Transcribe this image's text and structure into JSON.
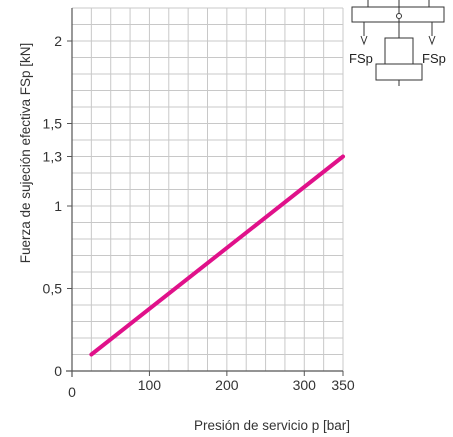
{
  "chart_data": {
    "type": "line",
    "xlabel": "Presión de servicio p [bar]",
    "ylabel": "Fuerza de sujeción efectiva FSp [kN]",
    "xlim": [
      0,
      350
    ],
    "ylim": [
      0,
      2.2
    ],
    "x_ticks": [
      {
        "value": 0,
        "label": "0"
      },
      {
        "value": 100,
        "label": "100"
      },
      {
        "value": 200,
        "label": "200"
      },
      {
        "value": 300,
        "label": "300"
      },
      {
        "value": 350,
        "label": "350"
      }
    ],
    "y_ticks": [
      {
        "value": 0,
        "label": "0"
      },
      {
        "value": 0.5,
        "label": "0,5"
      },
      {
        "value": 1,
        "label": "1"
      },
      {
        "value": 1.3,
        "label": "1,3"
      },
      {
        "value": 1.5,
        "label": "1,5"
      },
      {
        "value": 2,
        "label": "2"
      }
    ],
    "grid": true,
    "series": [
      {
        "color": "#e0118a",
        "x": [
          25,
          350
        ],
        "y": [
          0.1,
          1.3
        ]
      }
    ]
  },
  "diagram": {
    "force_label_left": "FSp",
    "force_label_right": "FSp"
  }
}
